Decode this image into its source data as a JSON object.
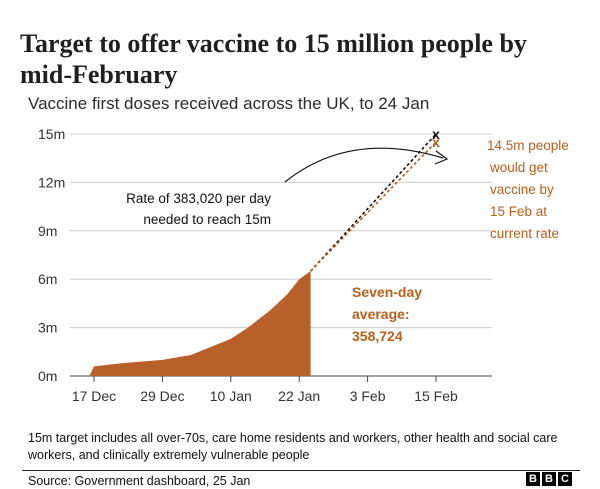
{
  "title": "Target to offer vaccine to 15 million people by mid-February",
  "subtitle": "Vaccine first doses received across the UK, to 24 Jan",
  "footnote": "15m target includes all over-70s, care home residents and workers, other health and social care workers, and clinically extremely vulnerable people",
  "source": "Source: Government dashboard, 25 Jan",
  "logo": [
    "B",
    "B",
    "C"
  ],
  "colors": {
    "area": "#b8602a",
    "projection": "#b85f1b",
    "target": "#111111",
    "grid": "#cccccc"
  },
  "chart_data": {
    "type": "area",
    "ylim": [
      0,
      15
    ],
    "yticks": [
      0,
      3,
      6,
      9,
      12,
      15
    ],
    "ytick_labels": [
      "0m",
      "3m",
      "6m",
      "9m",
      "12m",
      "15m"
    ],
    "xtick_labels": [
      "17 Dec",
      "29 Dec",
      "10 Jan",
      "22 Jan",
      "3 Feb",
      "15 Feb"
    ],
    "xtick_days": [
      0,
      12,
      24,
      36,
      48,
      60
    ],
    "xlim_days": [
      -4,
      62
    ],
    "x_date_start": "8 Dec",
    "series": [
      {
        "name": "",
        "x": [
          "8 Dec",
          "17 Dec",
          "22 Dec",
          "29 Dec",
          "3 Jan",
          "10 Jan",
          "13 Jan",
          "17 Jan",
          "20 Jan",
          "22 Jan",
          "24 Jan"
        ],
        "days": [
          -9,
          0,
          5,
          12,
          17,
          24,
          27,
          31,
          34,
          36,
          38
        ],
        "values": [
          0.0,
          0.6,
          0.8,
          1.0,
          1.3,
          2.3,
          3.0,
          4.1,
          5.1,
          6.0,
          6.5
        ]
      }
    ],
    "projections": [
      {
        "style": "target",
        "from": [
          "24 Jan",
          6.5
        ],
        "to": [
          "15 Feb",
          15.0
        ]
      },
      {
        "style": "current-rate",
        "from": [
          "24 Jan",
          6.5
        ],
        "to": [
          "15 Feb",
          14.5
        ]
      }
    ],
    "markers": [
      {
        "label": "x",
        "date": "15 Feb",
        "value": 15.0,
        "style": "target"
      },
      {
        "label": "x",
        "date": "15 Feb",
        "value": 14.5,
        "style": "current-rate"
      }
    ],
    "annotations": {
      "rate": [
        "Rate of 383,020 per day",
        "needed to reach 15m"
      ],
      "current_rate": [
        "14.5m people",
        "would get",
        "vaccine by",
        "15 Feb at",
        "current rate"
      ],
      "seven_day": [
        "Seven-day",
        "average:",
        "358,724"
      ]
    }
  }
}
